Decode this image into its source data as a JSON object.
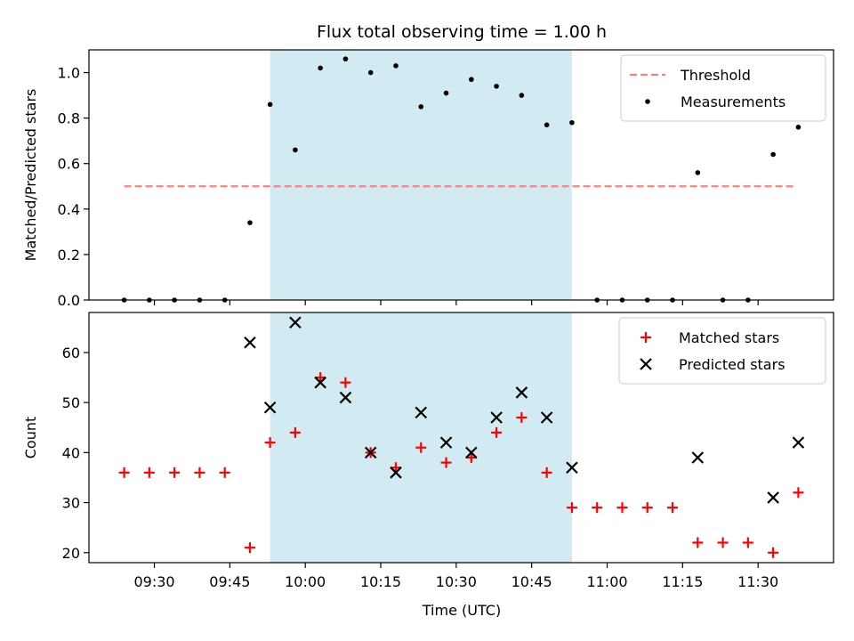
{
  "chart_data": {
    "title": "Flux total observing time = 1.00 h",
    "xlabel": "Time (UTC)",
    "x_ticks": [
      "09:30",
      "09:45",
      "10:00",
      "10:15",
      "10:30",
      "10:45",
      "11:00",
      "11:15",
      "11:30"
    ],
    "x_range": [
      "09:17",
      "11:45"
    ],
    "highlight": {
      "start": "09:53",
      "end": "10:53",
      "color": "#add8e6"
    },
    "panels": [
      {
        "type": "scatter",
        "ylabel": "Matched/Predicted stars",
        "ylim": [
          0,
          1.1
        ],
        "y_ticks": [
          "0.0",
          "0.2",
          "0.4",
          "0.6",
          "0.8",
          "1.0"
        ],
        "legend_position": "top-right",
        "threshold": {
          "name": "Threshold",
          "y": 0.5,
          "x_start": "09:24",
          "x_end": "11:37",
          "color": "#ff7f7f"
        },
        "series": [
          {
            "name": "Measurements",
            "color": "#000000",
            "x": [
              "09:24",
              "09:29",
              "09:34",
              "09:39",
              "09:44",
              "09:49",
              "09:53",
              "09:58",
              "10:03",
              "10:08",
              "10:13",
              "10:18",
              "10:23",
              "10:28",
              "10:33",
              "10:38",
              "10:43",
              "10:48",
              "10:53",
              "10:58",
              "11:03",
              "11:08",
              "11:13",
              "11:18",
              "11:23",
              "11:28",
              "11:33",
              "11:38"
            ],
            "y": [
              0,
              0,
              0,
              0,
              0,
              0.34,
              0.86,
              0.66,
              1.02,
              1.06,
              1.0,
              1.03,
              0.85,
              0.91,
              0.97,
              0.94,
              0.9,
              0.77,
              0.78,
              0,
              0,
              0,
              0,
              0.56,
              0,
              0,
              0.64,
              0.76
            ]
          }
        ]
      },
      {
        "type": "scatter",
        "ylabel": "Count",
        "ylim": [
          18,
          68
        ],
        "y_ticks": [
          "20",
          "30",
          "40",
          "50",
          "60"
        ],
        "legend_position": "top-right",
        "series": [
          {
            "name": "Matched stars",
            "marker": "plus",
            "color": "#ff0000",
            "x": [
              "09:24",
              "09:29",
              "09:34",
              "09:39",
              "09:44",
              "09:49",
              "09:53",
              "09:58",
              "10:03",
              "10:08",
              "10:13",
              "10:18",
              "10:23",
              "10:28",
              "10:33",
              "10:38",
              "10:43",
              "10:48",
              "10:53",
              "10:58",
              "11:03",
              "11:08",
              "11:13",
              "11:18",
              "11:23",
              "11:28",
              "11:33",
              "11:38"
            ],
            "y": [
              36,
              36,
              36,
              36,
              36,
              21,
              42,
              44,
              55,
              54,
              40,
              37,
              41,
              38,
              39,
              44,
              47,
              36,
              29,
              29,
              29,
              29,
              29,
              22,
              22,
              22,
              20,
              32
            ]
          },
          {
            "name": "Predicted stars",
            "marker": "x",
            "color": "#000000",
            "x": [
              "09:49",
              "09:53",
              "09:58",
              "10:03",
              "10:08",
              "10:13",
              "10:18",
              "10:23",
              "10:28",
              "10:33",
              "10:38",
              "10:43",
              "10:48",
              "10:53",
              "11:18",
              "11:33",
              "11:38"
            ],
            "y": [
              62,
              49,
              66,
              54,
              51,
              40,
              36,
              48,
              42,
              40,
              47,
              52,
              47,
              37,
              39,
              31,
              42
            ]
          }
        ]
      }
    ]
  }
}
